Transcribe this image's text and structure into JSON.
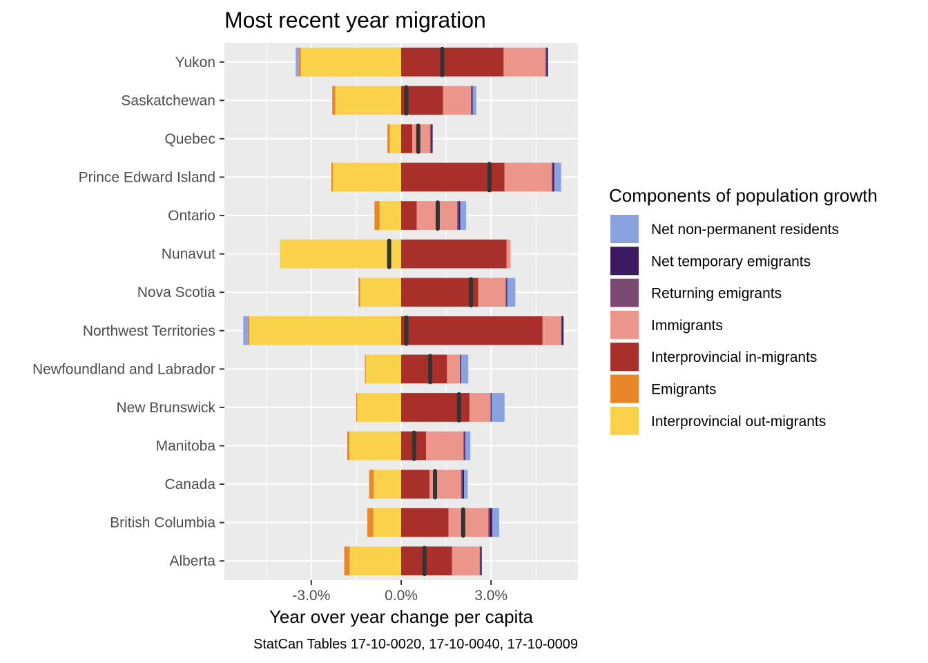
{
  "chart_data": {
    "type": "bar",
    "orientation": "horizontal-stacked",
    "title": "Most recent year migration",
    "xlabel": "Year over year change per capita",
    "caption": "StatCan Tables 17-10-0020, 17-10-0040, 17-10-0009",
    "x_unit": "percent",
    "xlim": [
      -5.9,
      5.9
    ],
    "x_ticks": [
      -3,
      0,
      3
    ],
    "x_tick_labels": [
      "-3.0%",
      "0.0%",
      "3.0%"
    ],
    "grid": true,
    "legend_position": "right",
    "legend_title": "Components of population growth",
    "legend": [
      {
        "key": "npr",
        "label": "Net non-permanent residents",
        "color": "#8aa2e0"
      },
      {
        "key": "nte",
        "label": "Net temporary emigrants",
        "color": "#3b1a62"
      },
      {
        "key": "ret",
        "label": "Returning emigrants",
        "color": "#7b4a72"
      },
      {
        "key": "imm",
        "label": "Immigrants",
        "color": "#ec958b"
      },
      {
        "key": "ipin",
        "label": "Interprovincial in-migrants",
        "color": "#a9302a"
      },
      {
        "key": "emi",
        "label": "Emigrants",
        "color": "#e8862a"
      },
      {
        "key": "ipout",
        "label": "Interprovincial out-migrants",
        "color": "#f9d14a"
      }
    ],
    "positive_stack_order": [
      "ipin",
      "imm",
      "ret",
      "nte",
      "npr"
    ],
    "negative_stack_order": [
      "ipout",
      "emi",
      "nte",
      "npr"
    ],
    "net_marker_color": "#333333",
    "categories": [
      "Yukon",
      "Saskatchewan",
      "Quebec",
      "Prince Edward Island",
      "Ontario",
      "Nunavut",
      "Nova Scotia",
      "Northwest Territories",
      "Newfoundland and Labrador",
      "New Brunswick",
      "Manitoba",
      "Canada",
      "British Columbia",
      "Alberta"
    ],
    "series": [
      {
        "key": "ipin",
        "name": "Interprovincial in-migrants",
        "values": [
          3.42,
          1.4,
          0.37,
          3.45,
          0.52,
          3.52,
          2.57,
          4.72,
          1.53,
          2.28,
          0.83,
          0.95,
          1.58,
          1.7
        ]
      },
      {
        "key": "imm",
        "name": "Immigrants",
        "values": [
          1.4,
          0.93,
          0.6,
          1.58,
          1.35,
          0.13,
          0.92,
          0.62,
          0.43,
          0.7,
          1.25,
          1.05,
          1.33,
          0.92
        ]
      },
      {
        "key": "ret",
        "name": "Returning emigrants",
        "values": [
          0.03,
          0.03,
          0.03,
          0.03,
          0.05,
          0.0,
          0.02,
          0.02,
          0.03,
          0.02,
          0.03,
          0.05,
          0.05,
          0.03
        ]
      },
      {
        "key": "nte",
        "name": "Net temporary emigrants",
        "values": [
          0.05,
          0.03,
          0.05,
          0.05,
          0.05,
          0.0,
          0.03,
          0.06,
          0.02,
          0.02,
          0.03,
          0.05,
          0.08,
          0.04
        ]
      },
      {
        "key": "npr",
        "name": "Net non-permanent residents",
        "values": [
          0.0,
          0.12,
          0.0,
          0.23,
          0.2,
          0.0,
          0.27,
          0.0,
          0.23,
          0.43,
          0.17,
          0.12,
          0.23,
          0.0
        ]
      },
      {
        "key": "ipout",
        "name": "Interprovincial out-migrants",
        "values": [
          -3.35,
          -2.2,
          -0.38,
          -2.28,
          -0.72,
          -4.05,
          -1.37,
          -5.07,
          -1.18,
          -1.47,
          -1.73,
          -0.92,
          -0.93,
          -1.72
        ]
      },
      {
        "key": "emi",
        "name": "Emigrants",
        "values": [
          -0.07,
          -0.1,
          -0.08,
          -0.05,
          -0.17,
          0.0,
          -0.05,
          -0.05,
          -0.03,
          -0.03,
          -0.07,
          -0.15,
          -0.2,
          -0.18
        ]
      },
      {
        "key": "npr",
        "name": "Net non-permanent residents",
        "values": [
          -0.1,
          0.0,
          0.0,
          0.0,
          0.0,
          0.0,
          0.0,
          -0.15,
          0.0,
          0.0,
          0.0,
          0.0,
          0.0,
          0.0
        ]
      }
    ],
    "net_change": [
      1.37,
      0.17,
      0.57,
      2.95,
      1.22,
      -0.4,
      2.33,
      0.17,
      0.97,
      1.93,
      0.43,
      1.13,
      2.07,
      0.78
    ]
  }
}
